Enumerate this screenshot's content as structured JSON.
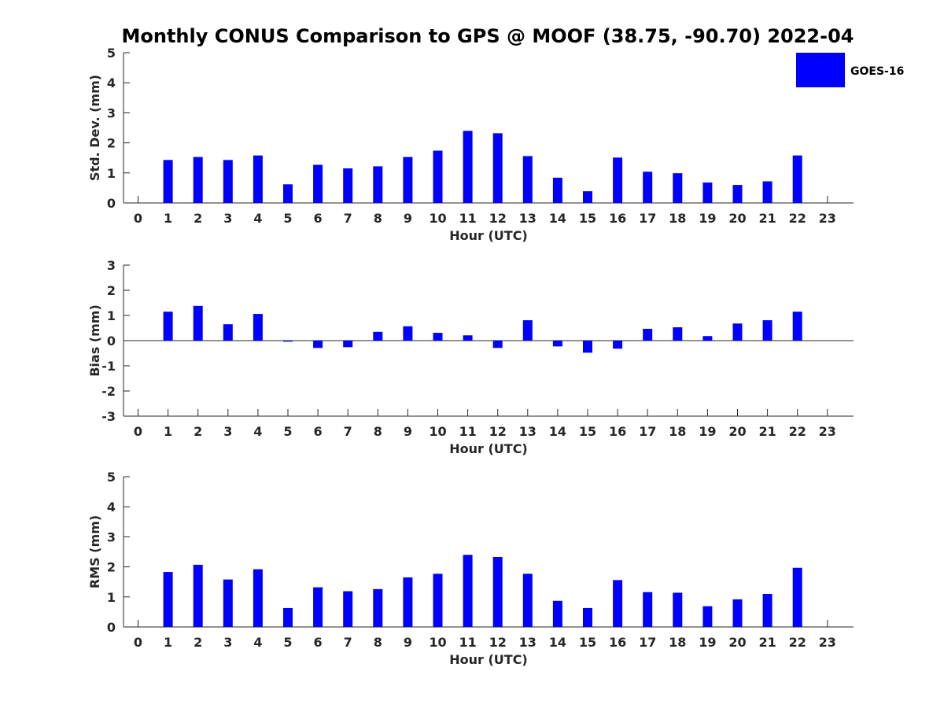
{
  "chart_data": [
    {
      "type": "bar",
      "title": "Monthly CONUS Comparison to GPS @ MOOF (38.75, -90.70) 2022-04",
      "xlabel": "Hour (UTC)",
      "ylabel": "Std. Dev. (mm)",
      "ylim": [
        0,
        5
      ],
      "yticks": [
        "0",
        "1",
        "2",
        "3",
        "4",
        "5"
      ],
      "categories": [
        "0",
        "1",
        "2",
        "3",
        "4",
        "5",
        "6",
        "7",
        "8",
        "9",
        "10",
        "11",
        "12",
        "13",
        "14",
        "15",
        "16",
        "17",
        "18",
        "19",
        "20",
        "21",
        "22",
        "23"
      ],
      "legend": {
        "label": "GOES-16",
        "color": "#0000ff",
        "position": "top-right"
      },
      "series": [
        {
          "name": "GOES-16",
          "color": "#0000ff",
          "values": [
            null,
            1.43,
            1.53,
            1.43,
            1.58,
            0.62,
            1.27,
            1.15,
            1.22,
            1.53,
            1.74,
            2.4,
            2.32,
            1.56,
            0.84,
            0.39,
            1.51,
            1.04,
            0.99,
            0.68,
            0.6,
            0.72,
            1.58,
            null
          ]
        }
      ]
    },
    {
      "type": "bar",
      "title": "",
      "xlabel": "Hour (UTC)",
      "ylabel": "Bias (mm)",
      "ylim": [
        -3,
        3
      ],
      "yticks": [
        "-3",
        "-2",
        "-1",
        "0",
        "1",
        "2",
        "3"
      ],
      "categories": [
        "0",
        "1",
        "2",
        "3",
        "4",
        "5",
        "6",
        "7",
        "8",
        "9",
        "10",
        "11",
        "12",
        "13",
        "14",
        "15",
        "16",
        "17",
        "18",
        "19",
        "20",
        "21",
        "22",
        "23"
      ],
      "zero_line": true,
      "series": [
        {
          "name": "GOES-16",
          "color": "#0000ff",
          "values": [
            null,
            1.15,
            1.38,
            0.65,
            1.06,
            -0.04,
            -0.29,
            -0.26,
            0.35,
            0.57,
            0.31,
            0.21,
            -0.29,
            0.81,
            -0.23,
            -0.48,
            -0.32,
            0.47,
            0.53,
            0.18,
            0.68,
            0.81,
            1.15,
            null
          ]
        }
      ]
    },
    {
      "type": "bar",
      "title": "",
      "xlabel": "Hour (UTC)",
      "ylabel": "RMS (mm)",
      "ylim": [
        0,
        5
      ],
      "yticks": [
        "0",
        "1",
        "2",
        "3",
        "4",
        "5"
      ],
      "categories": [
        "0",
        "1",
        "2",
        "3",
        "4",
        "5",
        "6",
        "7",
        "8",
        "9",
        "10",
        "11",
        "12",
        "13",
        "14",
        "15",
        "16",
        "17",
        "18",
        "19",
        "20",
        "21",
        "22",
        "23"
      ],
      "series": [
        {
          "name": "GOES-16",
          "color": "#0000ff",
          "values": [
            null,
            1.83,
            2.07,
            1.58,
            1.92,
            0.63,
            1.32,
            1.19,
            1.26,
            1.65,
            1.77,
            2.4,
            2.33,
            1.77,
            0.87,
            0.63,
            1.56,
            1.16,
            1.14,
            0.69,
            0.92,
            1.1,
            1.97,
            null
          ]
        }
      ]
    }
  ]
}
